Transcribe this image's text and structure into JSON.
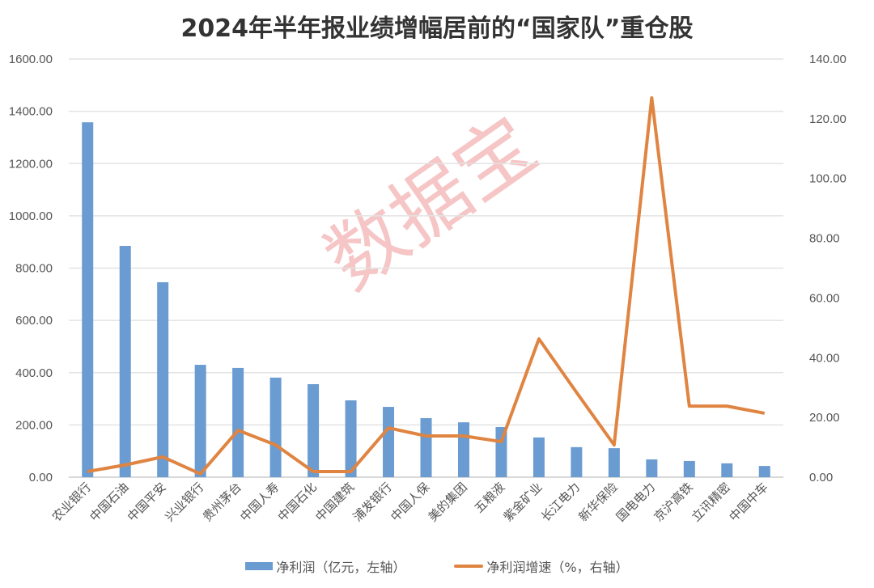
{
  "chart_data": {
    "type": "bar+line",
    "title": "2024年半年报业绩增幅居前的“国家队”重仓股",
    "categories": [
      "农业银行",
      "中国石油",
      "中国平安",
      "兴业银行",
      "贵州茅台",
      "中国人寿",
      "中国石化",
      "中国建筑",
      "浦发银行",
      "中国人保",
      "美的集团",
      "五粮液",
      "紫金矿业",
      "长江电力",
      "新华保险",
      "国电电力",
      "京沪高铁",
      "立讯精密",
      "中国中车"
    ],
    "series": [
      {
        "name": "净利润（亿元，左轴）",
        "type": "bar",
        "axis": "left",
        "color": "#6a9bd1",
        "values": [
          1358,
          885,
          746,
          430,
          418,
          381,
          356,
          294,
          269,
          226,
          210,
          192,
          152,
          115,
          111,
          68,
          62,
          53,
          43
        ]
      },
      {
        "name": "净利润增速（%，右轴）",
        "type": "line",
        "axis": "right",
        "color": "#e08441",
        "values": [
          1.9,
          4.1,
          6.8,
          1.1,
          15.7,
          10.8,
          1.9,
          1.9,
          16.5,
          13.8,
          13.8,
          11.9,
          46.3,
          28.4,
          10.8,
          127,
          23.8,
          23.8,
          21.4
        ]
      }
    ],
    "left_axis": {
      "ylim": [
        0,
        1600
      ],
      "ticks": [
        "0.00",
        "200.00",
        "400.00",
        "600.00",
        "800.00",
        "1000.00",
        "1200.00",
        "1400.00",
        "1600.00"
      ]
    },
    "right_axis": {
      "ylim": [
        0,
        140
      ],
      "ticks": [
        "0.00",
        "20.00",
        "40.00",
        "60.00",
        "80.00",
        "100.00",
        "120.00",
        "140.00"
      ]
    },
    "grid": true,
    "legend": "bottom",
    "watermark": "数据宝"
  }
}
